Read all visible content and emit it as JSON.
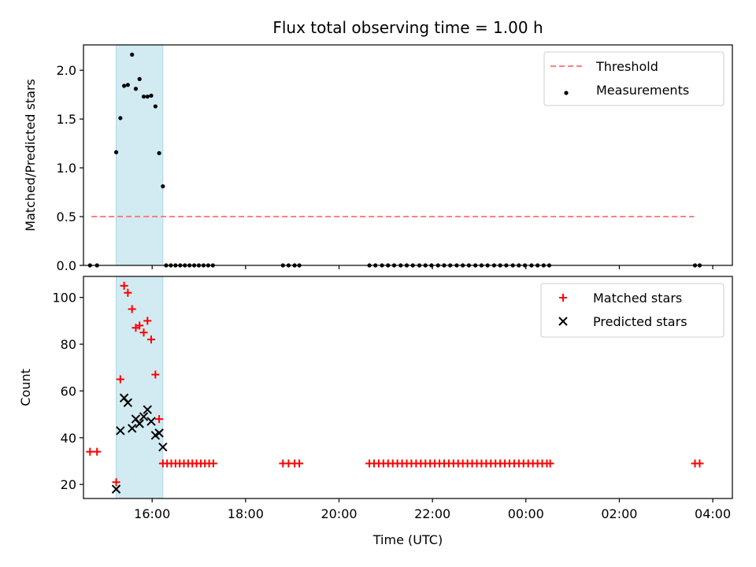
{
  "title": "Flux total observing time = 1.00 h",
  "colors": {
    "threshold": "#ff7f7f",
    "measurement": "#000000",
    "matched": "#ff0000",
    "predicted": "#000000",
    "highlight": "#add8e6"
  },
  "chart_data": [
    {
      "type": "scatter",
      "ylabel": "Matched/Predicted stars",
      "ylim": [
        0,
        2.26
      ],
      "yticks": [
        0.0,
        0.5,
        1.0,
        1.5,
        2.0
      ],
      "ytick_labels": [
        "0.0",
        "0.5",
        "1.0",
        "1.5",
        "2.0"
      ],
      "xlim_hours": [
        14.53,
        28.42
      ],
      "highlight_span_hours": [
        15.23,
        16.23
      ],
      "legend": {
        "placement": "top-right",
        "entries": [
          "Threshold",
          "Measurements"
        ]
      },
      "threshold": {
        "name": "Threshold",
        "y": 0.5,
        "x_from_hours": 14.7,
        "x_to_hours": 27.6,
        "style": "dashed"
      },
      "series": [
        {
          "name": "Measurements",
          "marker": "dot",
          "points": [
            [
              14.67,
              0
            ],
            [
              14.82,
              0
            ],
            [
              15.23,
              1.16
            ],
            [
              15.32,
              1.51
            ],
            [
              15.4,
              1.84
            ],
            [
              15.48,
              1.85
            ],
            [
              15.57,
              2.16
            ],
            [
              15.65,
              1.81
            ],
            [
              15.73,
              1.91
            ],
            [
              15.82,
              1.73
            ],
            [
              15.9,
              1.73
            ],
            [
              15.98,
              1.74
            ],
            [
              16.07,
              1.63
            ],
            [
              16.15,
              1.15
            ],
            [
              16.23,
              0.81
            ],
            [
              16.3,
              0
            ],
            [
              16.4,
              0
            ],
            [
              16.5,
              0
            ],
            [
              16.6,
              0
            ],
            [
              16.7,
              0
            ],
            [
              16.8,
              0
            ],
            [
              16.9,
              0
            ],
            [
              17.0,
              0
            ],
            [
              17.1,
              0
            ],
            [
              17.2,
              0
            ],
            [
              17.3,
              0
            ],
            [
              18.8,
              0
            ],
            [
              18.92,
              0
            ],
            [
              19.05,
              0
            ],
            [
              19.15,
              0
            ],
            [
              20.65,
              0
            ],
            [
              20.78,
              0
            ],
            [
              20.92,
              0
            ],
            [
              21.05,
              0
            ],
            [
              21.18,
              0
            ],
            [
              21.32,
              0
            ],
            [
              21.45,
              0
            ],
            [
              21.58,
              0
            ],
            [
              21.72,
              0
            ],
            [
              21.85,
              0
            ],
            [
              21.98,
              0
            ],
            [
              22.12,
              0
            ],
            [
              22.25,
              0
            ],
            [
              22.38,
              0
            ],
            [
              22.52,
              0
            ],
            [
              22.65,
              0
            ],
            [
              22.78,
              0
            ],
            [
              22.92,
              0
            ],
            [
              23.05,
              0
            ],
            [
              23.18,
              0
            ],
            [
              23.32,
              0
            ],
            [
              23.45,
              0
            ],
            [
              23.58,
              0
            ],
            [
              23.72,
              0
            ],
            [
              23.85,
              0
            ],
            [
              23.98,
              0
            ],
            [
              24.12,
              0
            ],
            [
              24.25,
              0
            ],
            [
              24.38,
              0
            ],
            [
              24.5,
              0
            ],
            [
              27.62,
              0
            ],
            [
              27.72,
              0
            ]
          ]
        }
      ]
    },
    {
      "type": "scatter",
      "ylabel": "Count",
      "xlabel": "Time (UTC)",
      "ylim": [
        14,
        109
      ],
      "yticks": [
        20,
        40,
        60,
        80,
        100
      ],
      "ytick_labels": [
        "20",
        "40",
        "60",
        "80",
        "100"
      ],
      "xlim_hours": [
        14.53,
        28.42
      ],
      "xticks_hours": [
        16,
        18,
        20,
        22,
        24,
        26,
        28
      ],
      "xtick_labels": [
        "16:00",
        "18:00",
        "20:00",
        "22:00",
        "00:00",
        "02:00",
        "04:00"
      ],
      "highlight_span_hours": [
        15.23,
        16.23
      ],
      "legend": {
        "placement": "top-right",
        "entries": [
          "Matched stars",
          "Predicted stars"
        ]
      },
      "series": [
        {
          "name": "Matched stars",
          "marker": "plus",
          "points": [
            [
              14.67,
              34
            ],
            [
              14.82,
              34
            ],
            [
              15.23,
              21
            ],
            [
              15.32,
              65
            ],
            [
              15.4,
              105
            ],
            [
              15.48,
              102
            ],
            [
              15.57,
              95
            ],
            [
              15.65,
              87
            ],
            [
              15.73,
              88
            ],
            [
              15.82,
              85
            ],
            [
              15.9,
              90
            ],
            [
              15.98,
              82
            ],
            [
              16.07,
              67
            ],
            [
              16.15,
              48
            ],
            [
              16.23,
              29
            ],
            [
              16.32,
              29
            ],
            [
              16.41,
              29
            ],
            [
              16.5,
              29
            ],
            [
              16.59,
              29
            ],
            [
              16.68,
              29
            ],
            [
              16.77,
              29
            ],
            [
              16.86,
              29
            ],
            [
              16.95,
              29
            ],
            [
              17.04,
              29
            ],
            [
              17.13,
              29
            ],
            [
              17.22,
              29
            ],
            [
              17.31,
              29
            ],
            [
              18.8,
              29
            ],
            [
              18.92,
              29
            ],
            [
              19.05,
              29
            ],
            [
              19.15,
              29
            ],
            [
              20.65,
              29
            ],
            [
              20.75,
              29
            ],
            [
              20.85,
              29
            ],
            [
              20.95,
              29
            ],
            [
              21.05,
              29
            ],
            [
              21.15,
              29
            ],
            [
              21.25,
              29
            ],
            [
              21.35,
              29
            ],
            [
              21.45,
              29
            ],
            [
              21.55,
              29
            ],
            [
              21.65,
              29
            ],
            [
              21.75,
              29
            ],
            [
              21.85,
              29
            ],
            [
              21.95,
              29
            ],
            [
              22.05,
              29
            ],
            [
              22.15,
              29
            ],
            [
              22.25,
              29
            ],
            [
              22.35,
              29
            ],
            [
              22.45,
              29
            ],
            [
              22.55,
              29
            ],
            [
              22.65,
              29
            ],
            [
              22.75,
              29
            ],
            [
              22.85,
              29
            ],
            [
              22.95,
              29
            ],
            [
              23.05,
              29
            ],
            [
              23.15,
              29
            ],
            [
              23.25,
              29
            ],
            [
              23.35,
              29
            ],
            [
              23.45,
              29
            ],
            [
              23.55,
              29
            ],
            [
              23.65,
              29
            ],
            [
              23.75,
              29
            ],
            [
              23.85,
              29
            ],
            [
              23.95,
              29
            ],
            [
              24.05,
              29
            ],
            [
              24.15,
              29
            ],
            [
              24.25,
              29
            ],
            [
              24.35,
              29
            ],
            [
              24.45,
              29
            ],
            [
              24.52,
              29
            ],
            [
              27.62,
              29
            ],
            [
              27.72,
              29
            ]
          ]
        },
        {
          "name": "Predicted stars",
          "marker": "x",
          "points": [
            [
              15.23,
              18
            ],
            [
              15.32,
              43
            ],
            [
              15.4,
              57
            ],
            [
              15.48,
              55
            ],
            [
              15.57,
              44
            ],
            [
              15.65,
              48
            ],
            [
              15.73,
              46
            ],
            [
              15.82,
              49
            ],
            [
              15.9,
              52
            ],
            [
              15.98,
              47
            ],
            [
              16.07,
              41
            ],
            [
              16.15,
              42
            ],
            [
              16.23,
              36
            ]
          ]
        }
      ]
    }
  ]
}
